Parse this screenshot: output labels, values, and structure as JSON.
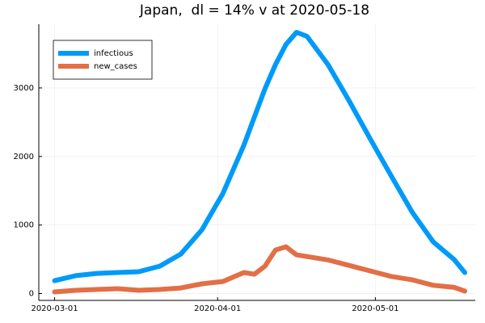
{
  "chart_data": {
    "type": "line",
    "title": "Japan,  dl = 14% v at 2020-05-18",
    "x": [
      "2020-03-01",
      "2020-03-05",
      "2020-03-09",
      "2020-03-13",
      "2020-03-17",
      "2020-03-21",
      "2020-03-25",
      "2020-03-29",
      "2020-04-02",
      "2020-04-06",
      "2020-04-08",
      "2020-04-10",
      "2020-04-12",
      "2020-04-14",
      "2020-04-16",
      "2020-04-18",
      "2020-04-22",
      "2020-04-26",
      "2020-04-30",
      "2020-05-04",
      "2020-05-08",
      "2020-05-12",
      "2020-05-16",
      "2020-05-18"
    ],
    "series": [
      {
        "name": "infectious",
        "color": "#009af9",
        "values": [
          188,
          260,
          294,
          306,
          318,
          400,
          576,
          929,
          1459,
          2165,
          2576,
          2988,
          3341,
          3635,
          3812,
          3753,
          3341,
          2812,
          2259,
          1718,
          1188,
          753,
          494,
          306
        ]
      },
      {
        "name": "new_cases",
        "color": "#e26f46",
        "values": [
          24,
          47,
          59,
          71,
          47,
          59,
          82,
          141,
          176,
          306,
          282,
          400,
          635,
          682,
          565,
          540,
          490,
          410,
          330,
          250,
          200,
          120,
          90,
          35
        ]
      }
    ],
    "xlim": [
      "2020-02-27",
      "2020-05-20"
    ],
    "xticks": [
      "2020-03-01",
      "2020-04-01",
      "2020-05-01"
    ],
    "ylim": [
      -100,
      3930
    ],
    "yticks": [
      0,
      1000,
      2000,
      3000
    ],
    "grid": true,
    "legend": "upper-left"
  }
}
